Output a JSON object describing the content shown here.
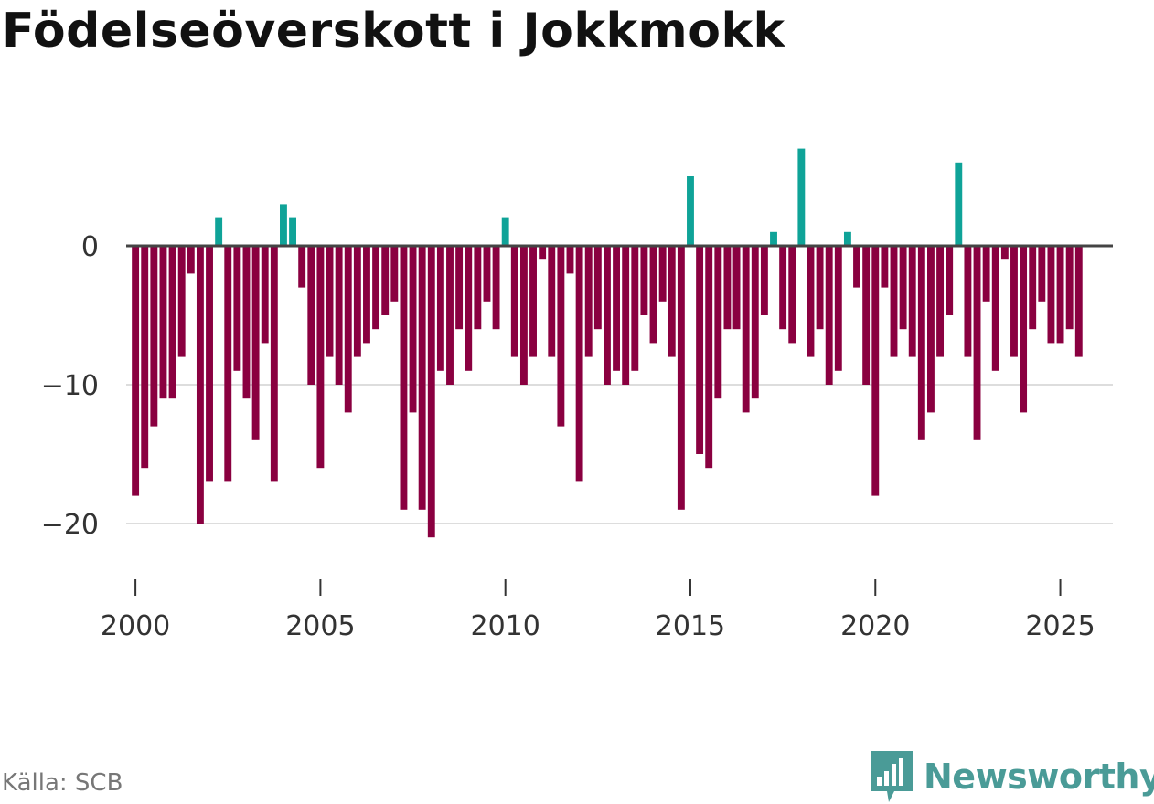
{
  "colors": {
    "positive": "#0fa398",
    "negative": "#8a0040",
    "zero_line": "#444444",
    "grid": "#dddddd",
    "brand": "#4a9b97"
  },
  "footer": {
    "source": "Källa: SCB",
    "brand": "Newsworthy",
    "logo_icon": "bar-chart-speech-bubble-icon"
  },
  "chart_data": {
    "type": "bar",
    "title": "Födelseöverskott i Jokkmokk",
    "xlabel": "",
    "ylabel": "",
    "ylim": [
      -25,
      8
    ],
    "xlim": [
      1999.75,
      2026.42
    ],
    "start": {
      "year": 2000,
      "quarter": 1
    },
    "frequency": "quarterly",
    "yticks": [
      0,
      -10,
      -20
    ],
    "ytick_labels": [
      "0",
      "−10",
      "−20"
    ],
    "xticks": [
      2000,
      2005,
      2010,
      2015,
      2020,
      2025
    ],
    "xtick_labels": [
      "2000",
      "2005",
      "2010",
      "2015",
      "2020",
      "2025"
    ],
    "values": [
      -18,
      -16,
      -13,
      -11,
      -11,
      -8,
      -2,
      -20,
      -17,
      2,
      -17,
      -9,
      -11,
      -14,
      -7,
      -17,
      3,
      2,
      -3,
      -10,
      -16,
      -8,
      -10,
      -12,
      -8,
      -7,
      -6,
      -5,
      -4,
      -19,
      -12,
      -19,
      -21,
      -9,
      -10,
      -6,
      -9,
      -6,
      -4,
      -6,
      2,
      -8,
      -10,
      -8,
      -1,
      -8,
      -13,
      -2,
      -17,
      -8,
      -6,
      -10,
      -9,
      -10,
      -9,
      -5,
      -7,
      -4,
      -8,
      -19,
      5,
      -15,
      -16,
      -11,
      -6,
      -6,
      -12,
      -11,
      -5,
      1,
      -6,
      -7,
      7,
      -8,
      -6,
      -10,
      -9,
      1,
      -3,
      -10,
      -18,
      -3,
      -8,
      -6,
      -8,
      -14,
      -12,
      -8,
      -5,
      6,
      -8,
      -14,
      -4,
      -9,
      -1,
      -8,
      -12,
      -6,
      -4,
      -7,
      -7,
      -6,
      -8
    ]
  }
}
